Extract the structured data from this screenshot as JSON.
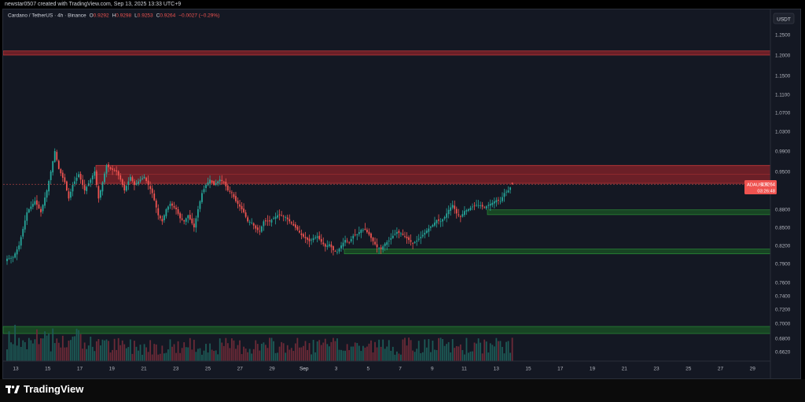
{
  "header": {
    "attribution": "newstar0507 created with TradingView.com, Sep 13, 2025 13:33 UTC+9"
  },
  "legend": {
    "symbol": "Cardano / TetherUS · 4h · Binance",
    "o_label": "O",
    "o": "0.9292",
    "h_label": "H",
    "h": "0.9298",
    "l_label": "L",
    "l": "0.9253",
    "c_label": "C",
    "c": "0.9264",
    "change": "−0.0027 (−0.29%)"
  },
  "price_axis": {
    "currency": "USDT",
    "labels": [
      "1.2500",
      "1.2000",
      "1.1500",
      "1.1100",
      "1.0700",
      "1.0300",
      "0.9900",
      "0.9500",
      "0.8800",
      "0.8500",
      "0.8200",
      "0.7900",
      "0.7600",
      "0.7400",
      "0.7200",
      "0.7000",
      "0.6800",
      "0.6620"
    ],
    "current_symbol": "ADAUSDT",
    "current_price": "0.9264",
    "countdown": "03:26:48"
  },
  "time_axis": {
    "labels": [
      "13",
      "15",
      "17",
      "19",
      "21",
      "23",
      "25",
      "27",
      "29",
      "Sep",
      "3",
      "5",
      "7",
      "9",
      "11",
      "13",
      "15",
      "17",
      "19",
      "21",
      "23",
      "25",
      "27",
      "29"
    ]
  },
  "brand": {
    "name": "TradingView",
    "icon": "tradingview-logo-icon"
  },
  "colors": {
    "bull": "#26a69a",
    "bear": "#ef5350",
    "background": "#141823",
    "resistance": "#b2272b",
    "support": "#1b6b26"
  },
  "chart_data": {
    "type": "candlestick",
    "symbol": "ADAUSDT",
    "interval": "4h",
    "exchange": "Binance",
    "last_price": 0.9264,
    "ohlc": {
      "open": 0.9292,
      "high": 0.9298,
      "low": 0.9253,
      "close": 0.9264
    },
    "zones": [
      {
        "kind": "resistance",
        "low": 1.2,
        "high": 1.21
      },
      {
        "kind": "resistance",
        "low": 0.928,
        "high": 0.962
      },
      {
        "kind": "support",
        "low": 0.871,
        "high": 0.879
      },
      {
        "kind": "support",
        "low": 0.806,
        "high": 0.814
      },
      {
        "kind": "support",
        "low": 0.686,
        "high": 0.694
      }
    ],
    "close_path": [
      [
        0,
        0.798
      ],
      [
        3,
        0.8
      ],
      [
        6,
        0.82
      ],
      [
        10,
        0.875
      ],
      [
        14,
        0.895
      ],
      [
        17,
        0.875
      ],
      [
        20,
        0.915
      ],
      [
        22,
        0.95
      ],
      [
        24,
        0.99
      ],
      [
        26,
        0.955
      ],
      [
        29,
        0.93
      ],
      [
        31,
        0.9
      ],
      [
        33,
        0.925
      ],
      [
        36,
        0.945
      ],
      [
        39,
        0.915
      ],
      [
        42,
        0.935
      ],
      [
        44,
        0.95
      ],
      [
        46,
        0.9
      ],
      [
        48,
        0.93
      ],
      [
        50,
        0.962
      ],
      [
        52,
        0.955
      ],
      [
        55,
        0.95
      ],
      [
        57,
        0.935
      ],
      [
        59,
        0.915
      ],
      [
        62,
        0.94
      ],
      [
        64,
        0.925
      ],
      [
        67,
        0.935
      ],
      [
        69,
        0.94
      ],
      [
        71,
        0.925
      ],
      [
        73,
        0.91
      ],
      [
        76,
        0.87
      ],
      [
        78,
        0.86
      ],
      [
        80,
        0.88
      ],
      [
        82,
        0.89
      ],
      [
        85,
        0.88
      ],
      [
        87,
        0.865
      ],
      [
        89,
        0.86
      ],
      [
        91,
        0.87
      ],
      [
        94,
        0.85
      ],
      [
        96,
        0.88
      ],
      [
        98,
        0.91
      ],
      [
        100,
        0.925
      ],
      [
        102,
        0.935
      ],
      [
        104,
        0.925
      ],
      [
        107,
        0.935
      ],
      [
        109,
        0.93
      ],
      [
        111,
        0.915
      ],
      [
        113,
        0.91
      ],
      [
        115,
        0.895
      ],
      [
        117,
        0.885
      ],
      [
        119,
        0.875
      ],
      [
        121,
        0.86
      ],
      [
        123,
        0.858
      ],
      [
        125,
        0.848
      ],
      [
        127,
        0.843
      ],
      [
        129,
        0.86
      ],
      [
        132,
        0.86
      ],
      [
        134,
        0.865
      ],
      [
        136,
        0.87
      ],
      [
        138,
        0.87
      ],
      [
        140,
        0.867
      ],
      [
        142,
        0.86
      ],
      [
        144,
        0.853
      ],
      [
        146,
        0.846
      ],
      [
        148,
        0.837
      ],
      [
        150,
        0.832
      ],
      [
        152,
        0.827
      ],
      [
        154,
        0.832
      ],
      [
        156,
        0.835
      ],
      [
        158,
        0.826
      ],
      [
        160,
        0.818
      ],
      [
        162,
        0.822
      ],
      [
        164,
        0.812
      ],
      [
        166,
        0.809
      ],
      [
        168,
        0.82
      ],
      [
        170,
        0.829
      ],
      [
        172,
        0.825
      ],
      [
        174,
        0.836
      ],
      [
        176,
        0.838
      ],
      [
        178,
        0.846
      ],
      [
        180,
        0.846
      ],
      [
        182,
        0.838
      ],
      [
        184,
        0.827
      ],
      [
        186,
        0.817
      ],
      [
        188,
        0.814
      ],
      [
        190,
        0.823
      ],
      [
        192,
        0.828
      ],
      [
        194,
        0.836
      ],
      [
        196,
        0.842
      ],
      [
        198,
        0.84
      ],
      [
        200,
        0.835
      ],
      [
        202,
        0.829
      ],
      [
        204,
        0.823
      ],
      [
        206,
        0.828
      ],
      [
        208,
        0.834
      ],
      [
        210,
        0.841
      ],
      [
        212,
        0.848
      ],
      [
        214,
        0.854
      ],
      [
        216,
        0.862
      ],
      [
        218,
        0.86
      ],
      [
        220,
        0.867
      ],
      [
        222,
        0.879
      ],
      [
        224,
        0.888
      ],
      [
        226,
        0.873
      ],
      [
        228,
        0.867
      ],
      [
        230,
        0.877
      ],
      [
        232,
        0.88
      ],
      [
        234,
        0.885
      ],
      [
        236,
        0.888
      ],
      [
        238,
        0.887
      ],
      [
        240,
        0.883
      ],
      [
        242,
        0.888
      ],
      [
        244,
        0.892
      ],
      [
        246,
        0.897
      ],
      [
        248,
        0.895
      ],
      [
        250,
        0.91
      ],
      [
        252,
        0.915
      ],
      [
        254,
        0.926
      ]
    ]
  }
}
